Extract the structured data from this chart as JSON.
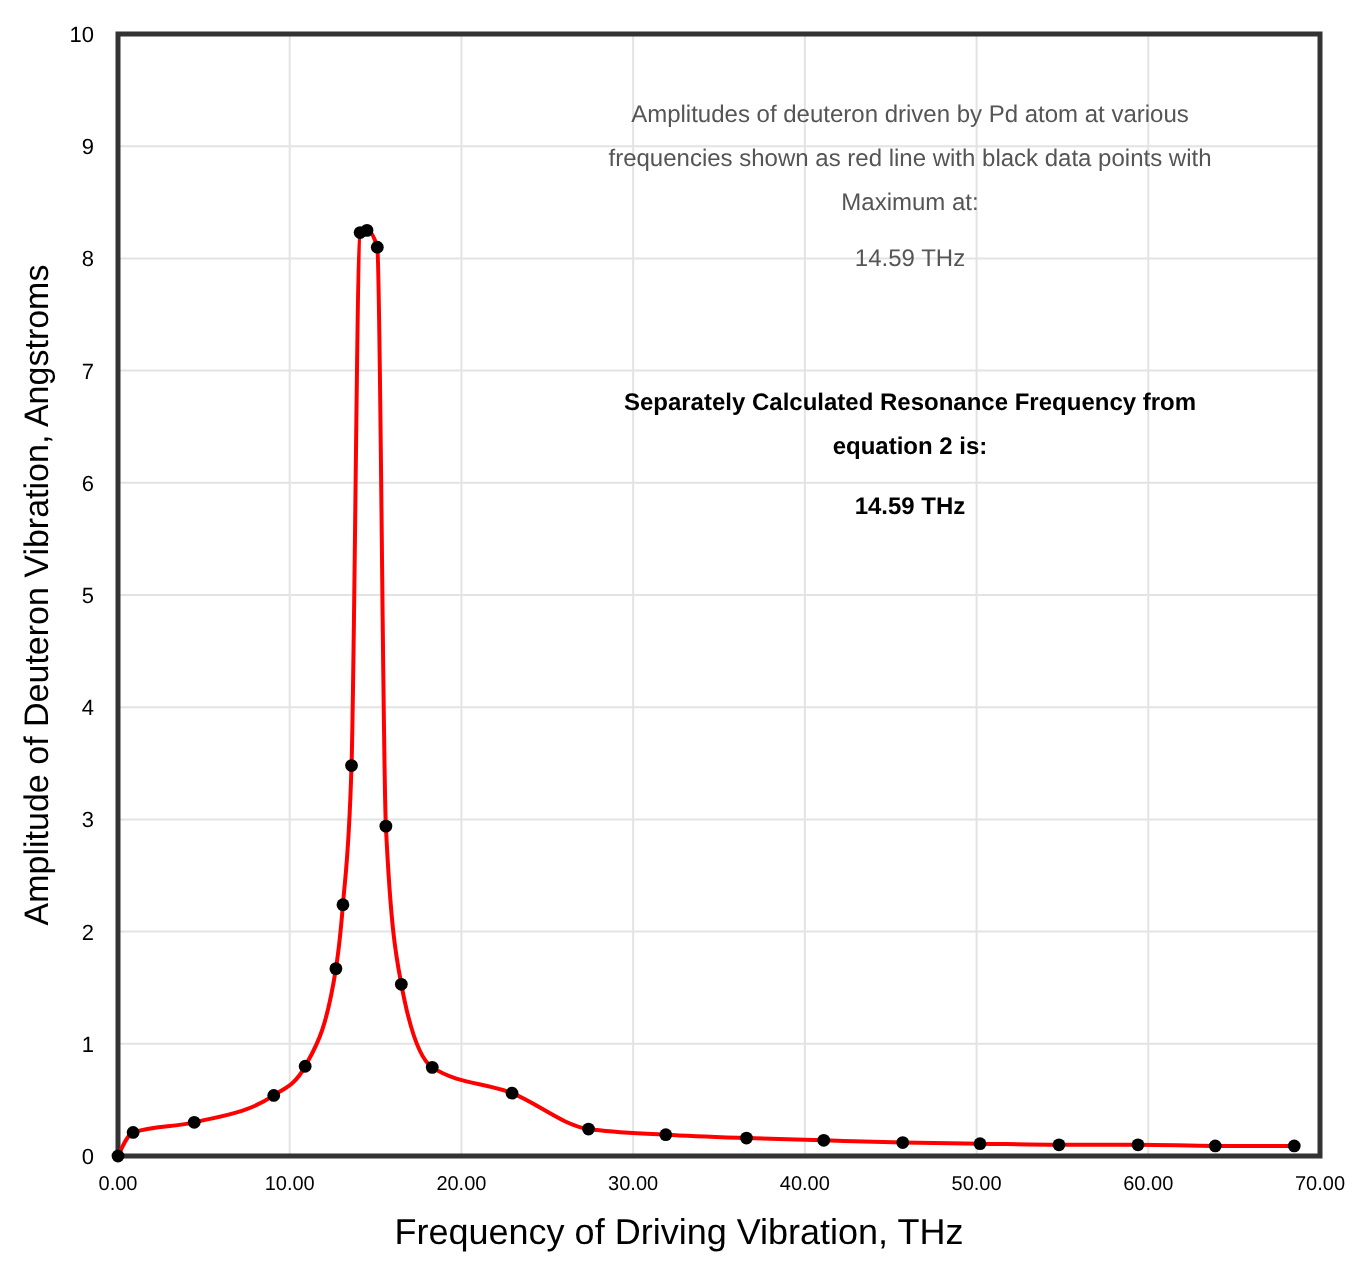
{
  "chart_data": {
    "type": "line",
    "xlabel": "Frequency of Driving Vibration, THz",
    "ylabel": "Amplitude of Deuteron Vibration, Angstroms",
    "x": [
      0,
      0.88,
      4.44,
      9.07,
      10.9,
      12.69,
      13.1,
      13.6,
      14.1,
      14.5,
      15.1,
      15.6,
      16.5,
      18.3,
      22.95,
      27.4,
      31.9,
      36.6,
      41.1,
      45.7,
      50.2,
      54.8,
      59.4,
      63.9,
      68.5
    ],
    "series": [
      {
        "color": "#ff0000",
        "marker": "none",
        "values": [
          0,
          0.21,
          0.3,
          0.54,
          0.8,
          1.67,
          2.24,
          3.48,
          8.23,
          8.25,
          8.1,
          2.94,
          1.53,
          0.79,
          0.56,
          0.24,
          0.19,
          0.16,
          0.14,
          0.12,
          0.11,
          0.1,
          0.1,
          0.09,
          0.09
        ]
      },
      {
        "type": "scatter",
        "color": "#000000",
        "marker": "circle",
        "values": [
          0,
          0.21,
          0.3,
          0.54,
          0.8,
          1.67,
          2.24,
          3.48,
          8.23,
          8.25,
          8.1,
          2.94,
          1.53,
          0.79,
          0.56,
          0.24,
          0.19,
          0.16,
          0.14,
          0.12,
          0.11,
          0.1,
          0.1,
          0.09,
          0.09
        ]
      }
    ],
    "xlim": [
      0,
      70
    ],
    "xticks": [
      {
        "value": 0,
        "label": "0.00"
      },
      {
        "value": 10,
        "label": "10.00"
      },
      {
        "value": 20,
        "label": "20.00"
      },
      {
        "value": 30,
        "label": "30.00"
      },
      {
        "value": 40,
        "label": "40.00"
      },
      {
        "value": 50,
        "label": "50.00"
      },
      {
        "value": 60,
        "label": "60.00"
      },
      {
        "value": 70,
        "label": "70.00"
      }
    ],
    "ylim": [
      0,
      10
    ],
    "yticks": [
      0,
      1,
      2,
      3,
      4,
      5,
      6,
      7,
      8,
      9,
      10
    ],
    "grid": true,
    "annotations": [
      "Amplitudes of deuteron driven by Pd atom at various frequencies shown as red line with black data points with Maximum at:",
      "14.59 THz",
      "Separately Calculated Resonance Frequency from equation 2 is:",
      "14.59 THz"
    ]
  }
}
